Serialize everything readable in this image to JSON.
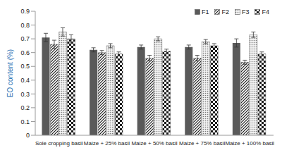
{
  "chart_data": {
    "type": "bar",
    "y_label": "EO content (%)",
    "categories": [
      "Sole cropping basil",
      "Maize + 25% basil",
      "Maize + 50% basil",
      "Maize + 75% basil",
      "Maize + 100% basil"
    ],
    "series": [
      {
        "name": "F1",
        "color": "#5a5a5a",
        "values": [
          0.71,
          0.62,
          0.64,
          0.64,
          0.67
        ],
        "errors": [
          0.03,
          0.015,
          0.015,
          0.015,
          0.03
        ]
      },
      {
        "name": "F2",
        "color": "#1a1a1a",
        "values": [
          0.66,
          0.6,
          0.56,
          0.56,
          0.53
        ],
        "errors": [
          0.03,
          0.015,
          0.02,
          0.02,
          0.015
        ]
      },
      {
        "name": "F3",
        "color": "#7a7a7a",
        "values": [
          0.75,
          0.65,
          0.7,
          0.68,
          0.73
        ],
        "errors": [
          0.03,
          0.015,
          0.015,
          0.015,
          0.02
        ]
      },
      {
        "name": "F4",
        "color": "#1a1a1a",
        "values": [
          0.7,
          0.59,
          0.61,
          0.65,
          0.59
        ],
        "errors": [
          0.03,
          0.015,
          0.015,
          0.015,
          0.015
        ]
      }
    ],
    "ylim": [
      0,
      0.9
    ],
    "yticks": [
      0,
      0.1,
      0.2,
      0.3,
      0.4,
      0.5,
      0.6,
      0.7,
      0.8,
      0.9
    ],
    "grid": false,
    "legend": "upper right"
  }
}
